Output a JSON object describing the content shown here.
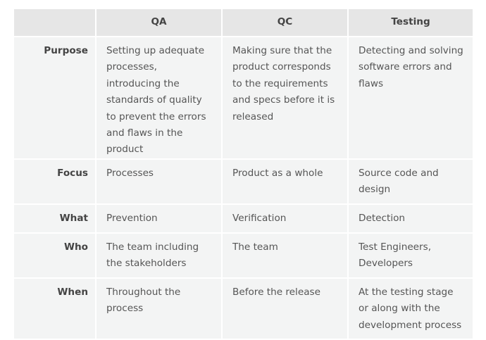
{
  "table": {
    "headers": [
      "",
      "QA",
      "QC",
      "Testing"
    ],
    "rows": [
      {
        "label": "Purpose",
        "cells": [
          "Setting up adequate processes, introducing the standards of quality to prevent the errors and flaws in the product",
          "Making sure that the product corresponds to the requirements and specs before it is released",
          "Detecting and solving software errors and flaws"
        ]
      },
      {
        "label": "Focus",
        "cells": [
          "Processes",
          "Product as a whole",
          "Source code and design"
        ]
      },
      {
        "label": "What",
        "cells": [
          "Prevention",
          "Verification",
          "Detection"
        ]
      },
      {
        "label": "Who",
        "cells": [
          "The team including the stakeholders",
          "The team",
          "Test Engineers, Developers"
        ]
      },
      {
        "label": "When",
        "cells": [
          "Throughout the process",
          "Before the release",
          "At the testing stage or along with the development process"
        ]
      }
    ]
  }
}
